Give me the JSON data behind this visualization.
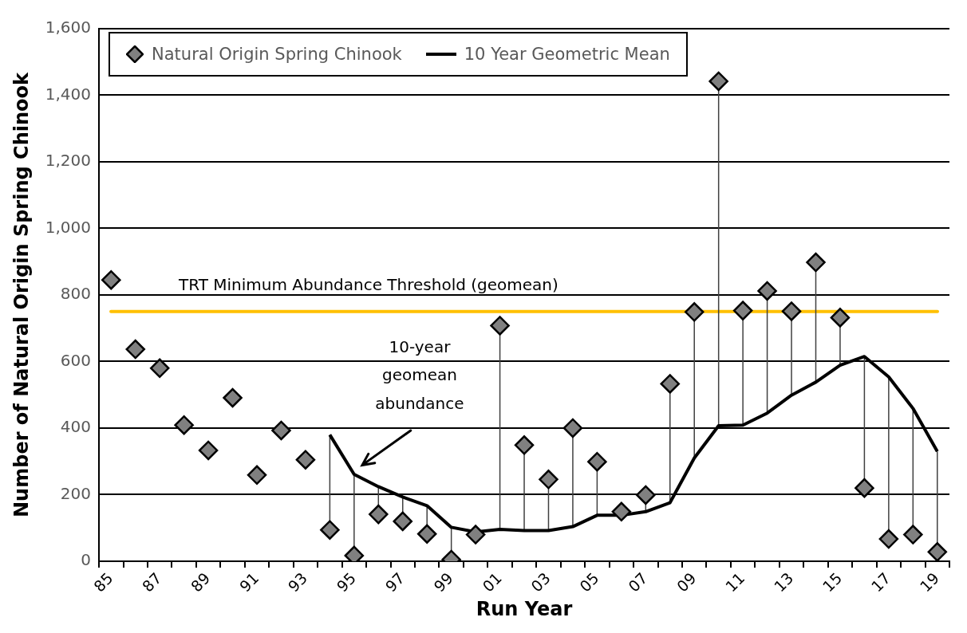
{
  "chart_data": {
    "type": "line",
    "xlabel": "Run Year",
    "ylabel": "Number of Natural Origin Spring Chinook",
    "categories": [
      "85",
      null,
      "87",
      null,
      "89",
      null,
      "91",
      null,
      "93",
      null,
      "95",
      null,
      "97",
      null,
      "99",
      null,
      "01",
      null,
      "03",
      null,
      "05",
      null,
      "07",
      null,
      "09",
      null,
      "11",
      null,
      "13",
      null,
      "15",
      null,
      "17",
      null,
      "19"
    ],
    "series": [
      {
        "name": "Natural Origin Spring Chinook",
        "type": "scatter",
        "marker": "diamond",
        "color": "#808080",
        "values": [
          845,
          637,
          580,
          409,
          333,
          491,
          259,
          393,
          305,
          94,
          17,
          141,
          120,
          82,
          5,
          80,
          708,
          349,
          246,
          400,
          299,
          149,
          199,
          533,
          749,
          1442,
          753,
          812,
          751,
          898,
          732,
          220,
          67,
          80,
          28
        ],
        "errors": [
          null,
          null,
          null,
          null,
          null,
          null,
          null,
          null,
          null,
          [
            94,
            380
          ],
          [
            17,
            261
          ],
          [
            141,
            224
          ],
          [
            120,
            193
          ],
          [
            82,
            167
          ],
          [
            5,
            102
          ],
          [
            80,
            88
          ],
          [
            96,
            708
          ],
          [
            92,
            349
          ],
          [
            92,
            246
          ],
          [
            104,
            400
          ],
          [
            138,
            299
          ],
          [
            138,
            149
          ],
          [
            149,
            199
          ],
          [
            176,
            533
          ],
          [
            310,
            749
          ],
          [
            407,
            1442
          ],
          [
            409,
            753
          ],
          [
            445,
            812
          ],
          [
            499,
            751
          ],
          [
            538,
            898
          ],
          [
            589,
            732
          ],
          [
            220,
            615
          ],
          [
            67,
            554
          ],
          [
            80,
            459
          ],
          [
            28,
            330
          ]
        ]
      },
      {
        "name": "10 Year Geometric Mean",
        "type": "line",
        "marker": "none",
        "color": "#000000",
        "values": [
          null,
          null,
          null,
          null,
          null,
          null,
          null,
          null,
          null,
          380,
          261,
          224,
          193,
          167,
          102,
          88,
          96,
          92,
          92,
          104,
          138,
          138,
          149,
          176,
          310,
          407,
          409,
          445,
          499,
          538,
          589,
          615,
          554,
          459,
          330
        ]
      }
    ],
    "ylim": [
      0,
      1600
    ],
    "yticks": [
      0,
      200,
      400,
      600,
      800,
      {
        "value": 1000,
        "label": "1,000"
      },
      {
        "value": 1200,
        "label": "1,200"
      },
      {
        "value": 1400,
        "label": "1,400"
      },
      {
        "value": 1600,
        "label": "1,600"
      }
    ],
    "ref_lines": [
      {
        "axis": "y",
        "value": 750,
        "label": "TRT Minimum Abundance Threshold (geomean)",
        "color": "#ffc000"
      }
    ],
    "annotations": [
      "10-year geomean abundance"
    ],
    "grid": "y",
    "legend": "top left"
  }
}
